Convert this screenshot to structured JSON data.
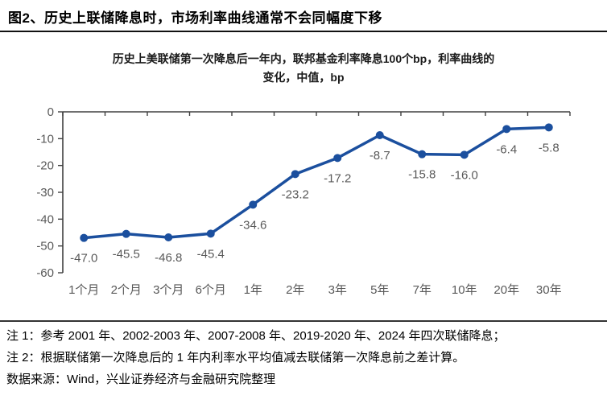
{
  "page": {
    "title": "图2、历史上联储降息时，市场利率曲线通常不会同幅度下移"
  },
  "notes": {
    "note1": "注 1：参考 2001 年、2002-2003 年、2007-2008 年、2019-2020 年、2024 年四次联储降息；",
    "note2": "注 2：根据联储第一次降息后的 1 年内利率水平均值减去联储第一次降息前之差计算。",
    "source": "数据来源：Wind，兴业证券经济与金融研究院整理"
  },
  "chart_data": {
    "type": "line",
    "title": "历史上美联储第一次降息后一年内，联邦基金利率降息100个bp，利率曲线的变化，中值，bp",
    "title_line1": "历史上美联储第一次降息后一年内，联邦基金利率降息100个bp，利率曲线的",
    "title_line2": "变化，中值，bp",
    "categories": [
      "1个月",
      "2个月",
      "3个月",
      "6个月",
      "1年",
      "2年",
      "3年",
      "5年",
      "7年",
      "10年",
      "20年",
      "30年"
    ],
    "values": [
      -47.0,
      -45.5,
      -46.8,
      -45.4,
      -34.6,
      -23.2,
      -17.2,
      -8.7,
      -15.8,
      -16.0,
      -6.4,
      -5.8
    ],
    "data_labels": [
      "-47.0",
      "-45.5",
      "-46.8",
      "-45.4",
      "-34.6",
      "-23.2",
      "-17.2",
      "-8.7",
      "-15.8",
      "-16.0",
      "-6.4",
      "-5.8"
    ],
    "y_ticks": [
      0,
      -10,
      -20,
      -30,
      -40,
      -50,
      -60
    ],
    "y_tick_labels": [
      "0",
      "-10",
      "-20",
      "-30",
      "-40",
      "-50",
      "-60"
    ],
    "ylim": [
      -60,
      0
    ],
    "xlabel": "",
    "ylabel": "",
    "grid": false,
    "legend": false,
    "line_color": "#1B4F9E",
    "marker_color": "#1B4F9E",
    "label_color": "#595959",
    "axis_color": "#404040"
  }
}
